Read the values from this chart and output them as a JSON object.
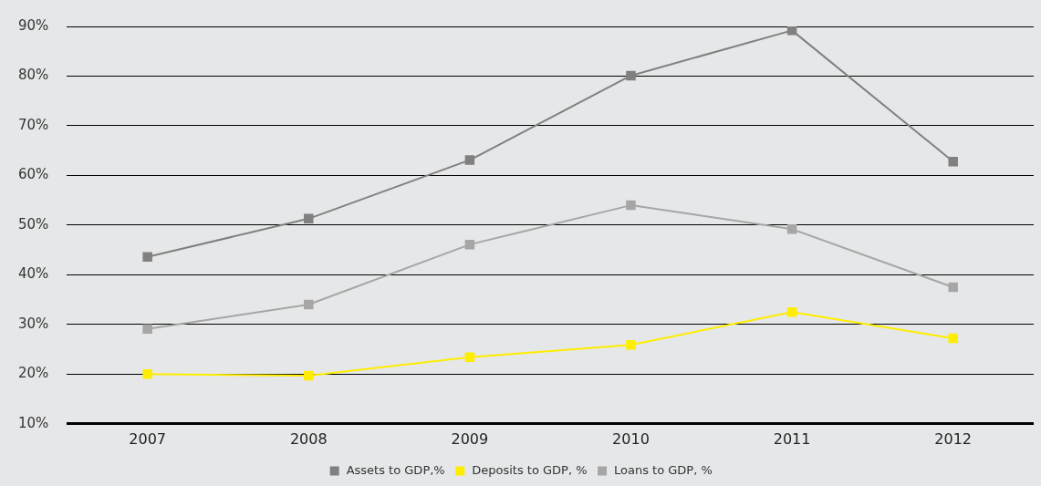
{
  "chart_data": {
    "type": "line",
    "categories": [
      "2007",
      "2008",
      "2009",
      "2010",
      "2011",
      "2012"
    ],
    "series": [
      {
        "name": "Assets to GDP,%",
        "color": "#808080",
        "values": [
          43.6,
          51.3,
          63.1,
          80.1,
          89.2,
          62.8
        ]
      },
      {
        "name": "Deposits to GDP, %",
        "color": "#ffed00",
        "values": [
          20,
          19.7,
          23.4,
          25.9,
          32.5,
          27.2
        ]
      },
      {
        "name": "Loans to GDP, %",
        "color": "#a6a6a6",
        "values": [
          29.1,
          34,
          46.1,
          54,
          49.2,
          37.5
        ]
      }
    ],
    "ylim": [
      10,
      90
    ],
    "yticks": [
      {
        "value": 10,
        "label": "10%"
      },
      {
        "value": 20,
        "label": "20%"
      },
      {
        "value": 30,
        "label": "30%"
      },
      {
        "value": 40,
        "label": "40%"
      },
      {
        "value": 50,
        "label": "50%"
      },
      {
        "value": 60,
        "label": "60%"
      },
      {
        "value": 70,
        "label": "70%"
      },
      {
        "value": 80,
        "label": "80%"
      },
      {
        "value": 90,
        "label": "90%"
      }
    ],
    "grid": "y",
    "legend": "bottom",
    "marker": "square",
    "line_style": "solid"
  }
}
